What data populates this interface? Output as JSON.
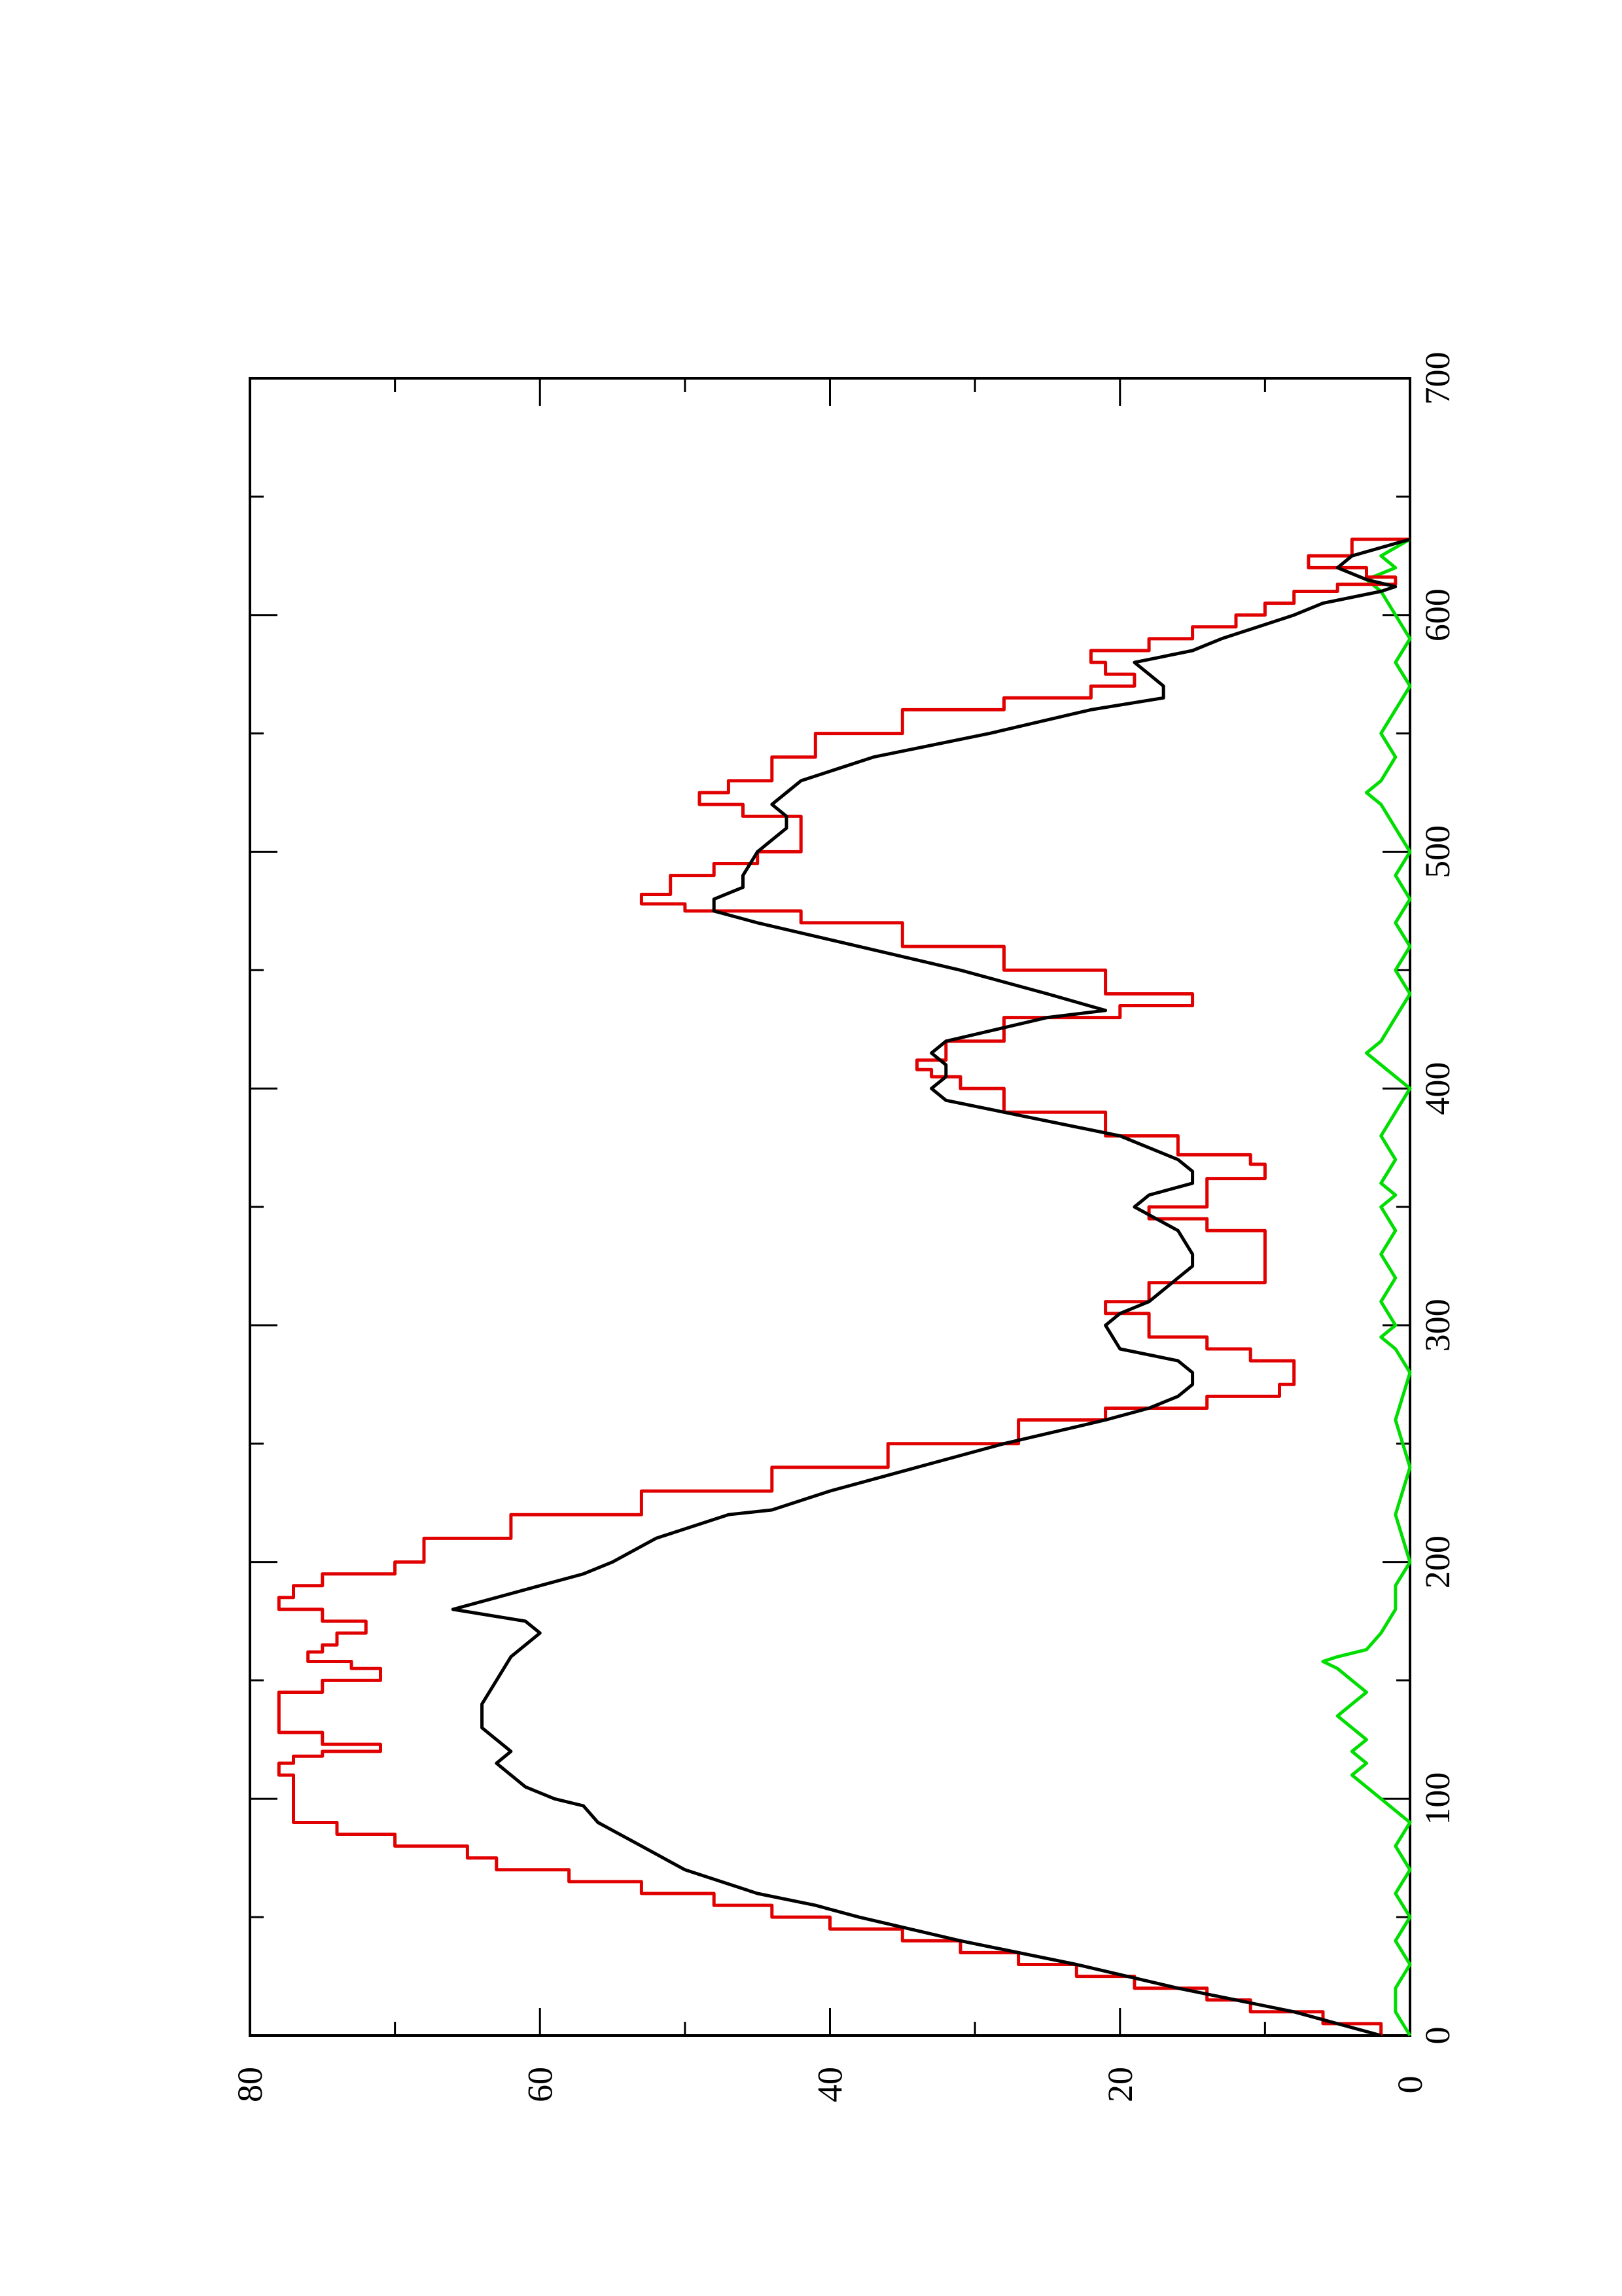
{
  "chart_data": {
    "type": "line",
    "orientation": "rotated-90-ccw",
    "title": "",
    "xlabel": "",
    "ylabel": "",
    "xlim": [
      0,
      700
    ],
    "ylim": [
      0,
      80
    ],
    "x_ticks_major": [
      0,
      100,
      200,
      300,
      400,
      500,
      600,
      700
    ],
    "x_ticks_minor": [
      50,
      150,
      250,
      350,
      450,
      550,
      650
    ],
    "y_ticks_major": [
      0,
      20,
      40,
      60,
      80
    ],
    "y_ticks_minor": [
      10,
      30,
      50,
      70
    ],
    "x_tick_labels": [
      "0",
      "100",
      "200",
      "300",
      "400",
      "500",
      "600",
      "700"
    ],
    "y_tick_labels": [
      "0",
      "20",
      "40",
      "60",
      "80"
    ],
    "grid": false,
    "legend": "none",
    "colors": {
      "axes": "#000000",
      "black_series": "#000000",
      "red_series": "#e00000",
      "green_series": "#00dd00"
    },
    "series": [
      {
        "color": "#000000",
        "step": false,
        "x": [
          0,
          10,
          20,
          30,
          40,
          50,
          55,
          60,
          70,
          80,
          90,
          97,
          100,
          105,
          110,
          115,
          120,
          125,
          130,
          140,
          150,
          160,
          165,
          170,
          175,
          178,
          180,
          185,
          190,
          195,
          200,
          210,
          220,
          222,
          230,
          240,
          250,
          260,
          265,
          270,
          275,
          280,
          285,
          290,
          300,
          305,
          310,
          320,
          325,
          330,
          340,
          350,
          355,
          360,
          365,
          370,
          380,
          390,
          395,
          400,
          405,
          410,
          415,
          420,
          430,
          433,
          440,
          450,
          460,
          470,
          475,
          480,
          485,
          490,
          500,
          505,
          510,
          515,
          520,
          525,
          530,
          540,
          550,
          560,
          565,
          570,
          575,
          580,
          585,
          590,
          600,
          605,
          610,
          612,
          615,
          620,
          625,
          632
        ],
        "y": [
          2,
          8,
          16,
          23,
          31,
          38,
          41,
          45,
          50,
          53,
          56,
          57,
          59,
          61,
          62,
          63,
          62,
          63,
          64,
          64,
          63,
          62,
          61,
          60,
          61,
          64,
          66,
          63,
          60,
          57,
          55,
          52,
          47,
          44,
          40,
          34,
          28,
          21,
          18,
          16,
          15,
          15,
          16,
          20,
          21,
          20,
          18,
          16,
          15,
          15,
          16,
          19,
          18,
          15,
          15,
          16,
          20,
          28,
          32,
          33,
          32,
          32,
          33,
          32,
          25,
          21,
          25,
          31,
          38,
          45,
          48,
          48,
          46,
          46,
          45,
          44,
          43,
          43,
          44,
          43,
          42,
          37,
          29,
          22,
          17,
          17,
          18,
          19,
          15,
          13,
          8,
          6,
          2,
          1,
          3,
          5,
          4,
          0
        ]
      },
      {
        "color": "#e00000",
        "step": true,
        "x": [
          0,
          5,
          10,
          15,
          20,
          25,
          30,
          35,
          40,
          45,
          50,
          55,
          60,
          65,
          70,
          75,
          80,
          85,
          90,
          95,
          100,
          105,
          110,
          115,
          118,
          120,
          123,
          128,
          135,
          140,
          145,
          150,
          155,
          158,
          162,
          165,
          170,
          175,
          180,
          185,
          190,
          195,
          200,
          210,
          220,
          230,
          240,
          250,
          260,
          265,
          270,
          275,
          285,
          290,
          295,
          305,
          310,
          318,
          335,
          340,
          345,
          350,
          362,
          368,
          372,
          380,
          390,
          400,
          405,
          408,
          412,
          420,
          430,
          435,
          440,
          450,
          460,
          470,
          475,
          478,
          482,
          490,
          495,
          500,
          510,
          515,
          520,
          525,
          530,
          540,
          550,
          560,
          565,
          570,
          575,
          580,
          585,
          590,
          595,
          600,
          605,
          610,
          613,
          616,
          620,
          625,
          632
        ],
        "y": [
          2,
          6,
          11,
          14,
          19,
          23,
          27,
          31,
          35,
          40,
          44,
          48,
          53,
          58,
          63,
          65,
          70,
          74,
          77,
          77,
          77,
          77,
          78,
          77,
          75,
          71,
          75,
          78,
          78,
          78,
          75,
          71,
          73,
          76,
          75,
          74,
          72,
          75,
          78,
          77,
          75,
          70,
          68,
          62,
          53,
          44,
          36,
          27,
          21,
          14,
          9,
          8,
          11,
          14,
          18,
          21,
          18,
          10,
          10,
          14,
          18,
          14,
          10,
          11,
          16,
          21,
          28,
          31,
          33,
          34,
          32,
          28,
          20,
          15,
          21,
          28,
          35,
          42,
          50,
          53,
          51,
          48,
          45,
          42,
          42,
          46,
          49,
          47,
          44,
          41,
          35,
          28,
          22,
          19,
          21,
          22,
          18,
          15,
          12,
          10,
          8,
          5,
          1,
          3,
          7,
          4,
          0
        ]
      },
      {
        "color": "#00dd00",
        "step": false,
        "x": [
          0,
          10,
          20,
          30,
          40,
          50,
          60,
          70,
          80,
          90,
          95,
          100,
          105,
          110,
          115,
          120,
          125,
          130,
          135,
          140,
          145,
          150,
          155,
          158,
          160,
          163,
          170,
          180,
          190,
          200,
          220,
          240,
          260,
          280,
          290,
          295,
          300,
          310,
          320,
          330,
          340,
          350,
          355,
          360,
          370,
          380,
          390,
          400,
          410,
          415,
          420,
          430,
          440,
          450,
          460,
          470,
          480,
          490,
          500,
          510,
          520,
          525,
          530,
          540,
          550,
          560,
          570,
          580,
          590,
          600,
          610,
          615,
          620,
          625,
          632
        ],
        "y": [
          0,
          1,
          1,
          0,
          1,
          0,
          1,
          0,
          1,
          0,
          1,
          2,
          3,
          4,
          3,
          4,
          3,
          4,
          5,
          4,
          3,
          4,
          5,
          6,
          5,
          3,
          2,
          1,
          1,
          0,
          1,
          0,
          1,
          0,
          1,
          2,
          1,
          2,
          1,
          2,
          1,
          2,
          1,
          2,
          1,
          2,
          1,
          0,
          2,
          3,
          2,
          1,
          0,
          1,
          0,
          1,
          0,
          1,
          0,
          1,
          2,
          3,
          2,
          1,
          2,
          1,
          0,
          1,
          0,
          1,
          2,
          3,
          1,
          2,
          0
        ]
      }
    ]
  }
}
